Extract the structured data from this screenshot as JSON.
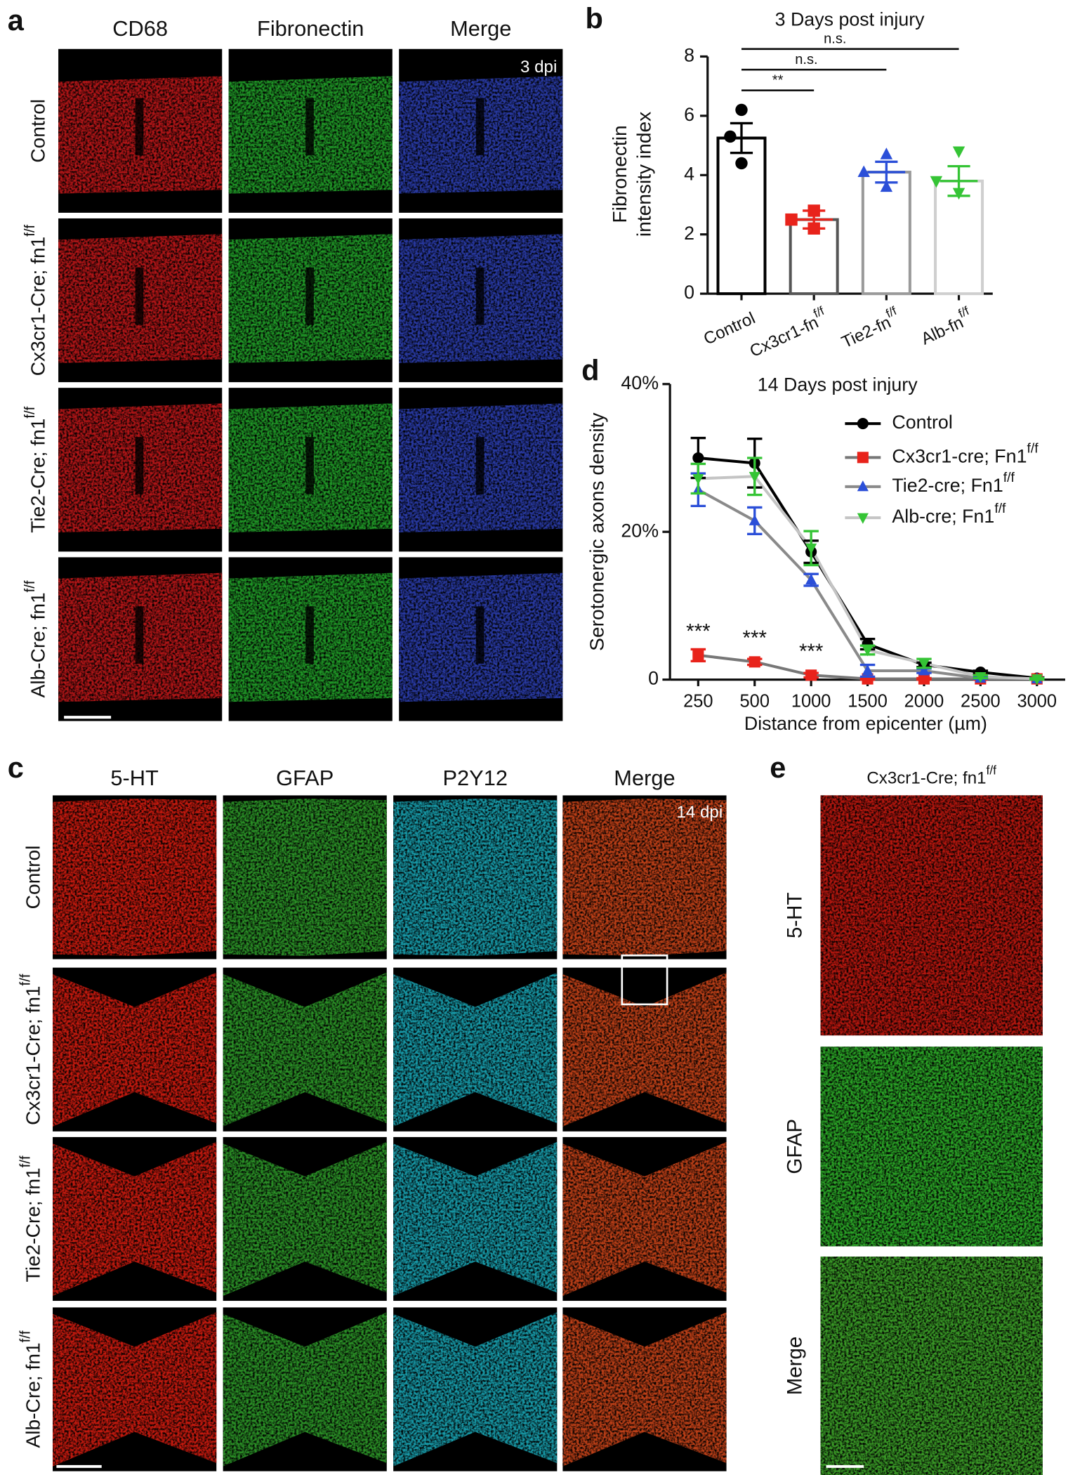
{
  "panel_labels": [
    "a",
    "b",
    "c",
    "d",
    "e"
  ],
  "panel_a": {
    "columns": [
      "CD68",
      "Fibronectin",
      "Merge"
    ],
    "rows": [
      {
        "text": "Control"
      },
      {
        "text": "Cx3cr1-Cre; fn1",
        "sup": "f/f"
      },
      {
        "text": "Tie2-Cre; fn1",
        "sup": "f/f"
      },
      {
        "text": "Alb-Cre; fn1",
        "sup": "f/f"
      }
    ],
    "annotation": "3 dpi"
  },
  "panel_c": {
    "columns": [
      "5-HT",
      "GFAP",
      "P2Y12",
      "Merge"
    ],
    "rows": [
      {
        "text": "Control"
      },
      {
        "text": "Cx3cr1-Cre; fn1",
        "sup": "f/f"
      },
      {
        "text": "Tie2-Cre; fn1",
        "sup": "f/f"
      },
      {
        "text": "Alb-Cre; fn1",
        "sup": "f/f"
      }
    ],
    "annotation": "14 dpi"
  },
  "panel_e": {
    "title": {
      "text": "Cx3cr1-Cre; fn1",
      "sup": "f/f"
    },
    "rows": [
      "5-HT",
      "GFAP",
      "Merge"
    ]
  },
  "chart_data": [
    {
      "type": "bar",
      "title": "3 Days post injury",
      "ylabel": [
        "Fibronectin",
        "intensity index"
      ],
      "categories": [
        {
          "text": "Control"
        },
        {
          "text": "Cx3cr1-fn",
          "sup": "f/f"
        },
        {
          "text": "Tie2-fn",
          "sup": "f/f"
        },
        {
          "text": "Alb-fn",
          "sup": "f/f"
        }
      ],
      "values": [
        5.25,
        2.5,
        4.1,
        3.8
      ],
      "errors": [
        0.5,
        0.3,
        0.35,
        0.5
      ],
      "points": [
        [
          6.2,
          5.3,
          4.4
        ],
        [
          2.8,
          2.5,
          2.2
        ],
        [
          4.7,
          4.1,
          3.6
        ],
        [
          4.8,
          3.8,
          3.4
        ]
      ],
      "edge_colors": [
        "#000000",
        "#555555",
        "#9a9a9a",
        "#cfcfcf"
      ],
      "point_colors": [
        "#000000",
        "#e8231b",
        "#2b4fd8",
        "#35c435"
      ],
      "point_markers": [
        "circle",
        "square",
        "triangle",
        "triangle-down"
      ],
      "ylim": [
        0,
        8
      ],
      "yticks": [
        0,
        2,
        4,
        6,
        8
      ],
      "significance": [
        {
          "from": 0,
          "to": 3,
          "label": "n.s."
        },
        {
          "from": 0,
          "to": 2,
          "label": "n.s."
        },
        {
          "from": 0,
          "to": 1,
          "label": "**"
        }
      ]
    },
    {
      "type": "line",
      "title": "14 Days post injury",
      "xlabel": "Distance from epicenter (µm)",
      "ylabel": "Serotonergic axons density",
      "categories": [
        250,
        500,
        1000,
        1500,
        2000,
        2500,
        3000
      ],
      "ylim": [
        0,
        40
      ],
      "yticks": [
        0,
        {
          "value": 20,
          "label": "20%"
        },
        {
          "value": 40,
          "label": "40%"
        }
      ],
      "legend": "upper right",
      "series": [
        {
          "name": "Control",
          "color": "#000000",
          "line_color": "#000000",
          "marker": "circle",
          "values": [
            30,
            29.3,
            17.3,
            4.8,
            2,
            1,
            0.2
          ],
          "errors": [
            2.7,
            3.3,
            1.5,
            0.7,
            0.3,
            0.2,
            0.1
          ]
        },
        {
          "name": "Cx3cr1-cre; Fn1",
          "name_sup": "f/f",
          "color": "#e8231b",
          "line_color": "#777777",
          "marker": "square",
          "values": [
            3.3,
            2.4,
            0.6,
            0.1,
            0.1,
            0.1,
            0.1
          ],
          "errors": [
            0.8,
            0.4,
            0.3,
            0.1,
            0.1,
            0.1,
            0.1
          ]
        },
        {
          "name": "Tie2-cre; Fn1",
          "name_sup": "f/f",
          "color": "#2b4fd8",
          "line_color": "#8a8a8a",
          "marker": "triangle",
          "values": [
            25.7,
            21.5,
            13.5,
            1.2,
            1.2,
            0.2,
            0.1
          ],
          "errors": [
            2.2,
            1.8,
            0.8,
            0.8,
            0.3,
            0.1,
            0.1
          ]
        },
        {
          "name": "Alb-cre; Fn1",
          "name_sup": "f/f",
          "color": "#35c435",
          "line_color": "#c4c4c4",
          "marker": "triangle-down",
          "values": [
            27.2,
            27.5,
            17.8,
            4,
            2.2,
            0.4,
            0.1
          ],
          "errors": [
            2,
            2.5,
            2.3,
            0.6,
            0.6,
            0.2,
            0.1
          ]
        }
      ],
      "annotations": [
        {
          "index": 0,
          "label": "***"
        },
        {
          "index": 1,
          "label": "***"
        },
        {
          "index": 2,
          "label": "***"
        }
      ]
    }
  ]
}
